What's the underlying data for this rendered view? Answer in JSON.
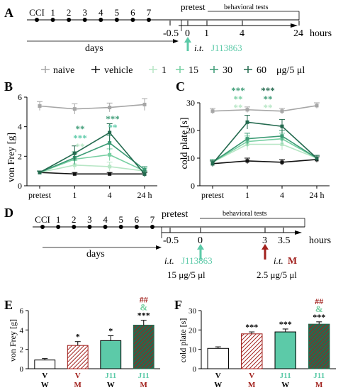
{
  "colors": {
    "naive": "#a6a6a6",
    "vehicle": "#111111",
    "c1": "#b7e6c5",
    "c15": "#77cfa2",
    "c30": "#3c9b75",
    "c60": "#246a4f",
    "j11_teal": "#5ccaa8",
    "m_red": "#a1201c",
    "arrow_teal": "#5ccaa8",
    "arrow_red": "#a1201c"
  },
  "panelA": {
    "letter": "A",
    "days_top": [
      "CCI",
      "1",
      "2",
      "3",
      "4",
      "5",
      "6",
      "7"
    ],
    "pretest": "pretest",
    "behav": "behavioral tests",
    "ticks": [
      "-0.5",
      "0",
      "1",
      "4",
      "24"
    ],
    "hours": "hours",
    "days": "days",
    "it": "i.t.",
    "drug": "J113863"
  },
  "legend": {
    "items": [
      "naive",
      "vehicle",
      "1",
      "15",
      "30",
      "60"
    ],
    "unit": "μg/5 μl"
  },
  "panelB": {
    "letter": "B",
    "ylabel": "von Frey [g]",
    "xticks": [
      "pretest",
      "1",
      "4",
      "24 h"
    ],
    "yticks": [
      "0",
      "2",
      "4",
      "6"
    ],
    "sig1": [
      "**",
      "***",
      "**"
    ],
    "sig4": [
      "***",
      "**"
    ]
  },
  "panelC": {
    "letter": "C",
    "ylabel": "cold plate [s]",
    "xticks": [
      "pretest",
      "1",
      "4",
      "24 h"
    ],
    "yticks": [
      "0",
      "10",
      "20",
      "30"
    ],
    "sig1": [
      "***",
      "**",
      "**"
    ],
    "sig4": [
      "***",
      "**",
      "**"
    ]
  },
  "panelD": {
    "letter": "D",
    "days_top": [
      "CCI",
      "1",
      "2",
      "3",
      "4",
      "5",
      "6",
      "7"
    ],
    "pretest": "pretest",
    "behav": "behavioral tests",
    "ticks": [
      "-0.5",
      "0",
      "3",
      "3.5"
    ],
    "hours": "hours",
    "days": "days",
    "it1": "i.t.",
    "drug1": "J113863",
    "dose1": "15 μg/5 μl",
    "it2": "i.t.",
    "drug2": "M",
    "dose2": "2.5 μg/5 μl"
  },
  "panelE": {
    "letter": "E",
    "ylabel": "von Frey [g]",
    "yticks": [
      "0",
      "2",
      "4",
      "6"
    ],
    "cat_top": [
      "V",
      "V",
      "J11",
      "J11"
    ],
    "cat_bot": [
      "W",
      "M",
      "W",
      "M"
    ],
    "sig": [
      "",
      "*",
      "*",
      "***"
    ],
    "amp": "&",
    "hash": "##"
  },
  "panelF": {
    "letter": "F",
    "ylabel": "cold plate [s]",
    "yticks": [
      "0",
      "10",
      "20",
      "30"
    ],
    "cat_top": [
      "V",
      "V",
      "J11",
      "J11"
    ],
    "cat_bot": [
      "W",
      "M",
      "W",
      "M"
    ],
    "sig": [
      "",
      "***",
      "***",
      "***"
    ],
    "amp": "&",
    "hash": "##"
  },
  "chart_data": [
    {
      "type": "line",
      "panel": "B",
      "ylabel": "von Frey [g]",
      "categories": [
        "pretest",
        "1",
        "4",
        "24 h"
      ],
      "ylim": [
        0,
        6
      ],
      "series": [
        {
          "name": "naive",
          "values": [
            5.4,
            5.2,
            5.3,
            5.5
          ],
          "errors": [
            0.3,
            0.35,
            0.3,
            0.4
          ]
        },
        {
          "name": "vehicle",
          "values": [
            0.9,
            0.8,
            0.8,
            0.8
          ],
          "errors": [
            0.1,
            0.1,
            0.1,
            0.1
          ]
        },
        {
          "name": "1",
          "values": [
            0.9,
            1.4,
            1.3,
            1.0
          ],
          "errors": [
            0.1,
            0.3,
            0.3,
            0.2
          ]
        },
        {
          "name": "15",
          "values": [
            0.9,
            1.8,
            2.1,
            1.0
          ],
          "errors": [
            0.1,
            0.4,
            0.4,
            0.2
          ]
        },
        {
          "name": "30",
          "values": [
            0.9,
            1.9,
            2.9,
            1.1
          ],
          "errors": [
            0.1,
            0.4,
            0.5,
            0.2
          ]
        },
        {
          "name": "60",
          "values": [
            0.9,
            2.2,
            3.6,
            0.8
          ],
          "errors": [
            0.1,
            0.5,
            0.6,
            0.2
          ]
        }
      ]
    },
    {
      "type": "line",
      "panel": "C",
      "ylabel": "cold plate [s]",
      "categories": [
        "pretest",
        "1",
        "4",
        "24 h"
      ],
      "ylim": [
        0,
        30
      ],
      "series": [
        {
          "name": "naive",
          "values": [
            27,
            27.5,
            27,
            29
          ],
          "errors": [
            1.0,
            1.0,
            1.0,
            1.0
          ]
        },
        {
          "name": "vehicle",
          "values": [
            8,
            9,
            8.5,
            9.5
          ],
          "errors": [
            1.0,
            1.0,
            1.0,
            1.0
          ]
        },
        {
          "name": "1",
          "values": [
            8.5,
            15,
            15,
            10
          ],
          "errors": [
            1.0,
            2.0,
            2.0,
            1.0
          ]
        },
        {
          "name": "15",
          "values": [
            8.5,
            16,
            17,
            10
          ],
          "errors": [
            1.0,
            2.0,
            2.0,
            1.0
          ]
        },
        {
          "name": "30",
          "values": [
            8.5,
            17,
            18,
            10
          ],
          "errors": [
            1.0,
            2.0,
            2.0,
            1.0
          ]
        },
        {
          "name": "60",
          "values": [
            8,
            23,
            21.5,
            10
          ],
          "errors": [
            1.0,
            2.5,
            2.5,
            1.0
          ]
        }
      ]
    },
    {
      "type": "bar",
      "panel": "E",
      "ylabel": "von Frey [g]",
      "categories": [
        "V W",
        "V M",
        "J11 W",
        "J11 M"
      ],
      "values": [
        0.9,
        2.4,
        2.9,
        4.5
      ],
      "errors": [
        0.15,
        0.4,
        0.5,
        0.5
      ],
      "ylim": [
        0,
        6
      ]
    },
    {
      "type": "bar",
      "panel": "F",
      "ylabel": "cold plate [s]",
      "categories": [
        "V W",
        "V M",
        "J11 W",
        "J11 M"
      ],
      "values": [
        10.5,
        18,
        19,
        23
      ],
      "errors": [
        0.8,
        1.0,
        1.5,
        1.2
      ],
      "ylim": [
        0,
        30
      ]
    }
  ]
}
